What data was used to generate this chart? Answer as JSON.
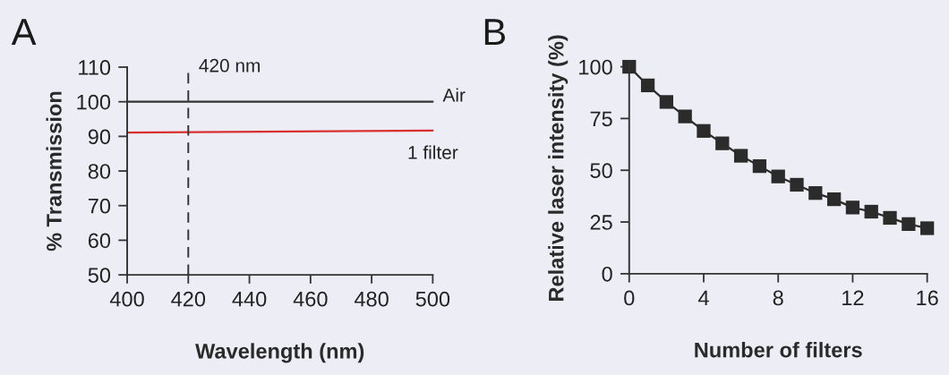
{
  "chart_data": [
    {
      "type": "line",
      "title": "A",
      "xlabel": "Wavelength (nm)",
      "ylabel": "% Transmission",
      "x": [
        400,
        500
      ],
      "series": [
        {
          "name": "Air",
          "color": "#333333",
          "values": [
            100,
            100
          ]
        },
        {
          "name": "1 filter",
          "color": "#d93030",
          "values": [
            91.1,
            91.7
          ]
        }
      ],
      "ref_lines": [
        {
          "axis": "x",
          "value": 420,
          "label": "420 nm",
          "line_style": "dashed",
          "color": "#333333"
        }
      ],
      "xlim": [
        400,
        500
      ],
      "xticks": [
        400,
        420,
        440,
        460,
        480,
        500
      ],
      "ylim": [
        50,
        110
      ],
      "yticks": [
        50,
        60,
        70,
        80,
        90,
        100,
        110
      ],
      "grid": false,
      "marker": "none"
    },
    {
      "type": "line",
      "title": "B",
      "xlabel": "Number of filters",
      "ylabel": "Relative laser intensity (%)",
      "x": [
        0,
        1,
        2,
        3,
        4,
        5,
        6,
        7,
        8,
        9,
        10,
        11,
        12,
        13,
        14,
        15,
        16
      ],
      "series": [
        {
          "color": "#2b2b2b",
          "values": [
            100,
            91,
            83,
            76,
            69,
            63,
            57,
            52,
            47,
            43,
            39,
            36,
            32,
            30,
            27,
            24,
            22
          ]
        }
      ],
      "xlim": [
        0,
        16
      ],
      "xticks": [
        0,
        4,
        8,
        12,
        16
      ],
      "ylim": [
        0,
        102
      ],
      "yticks": [
        0,
        25,
        50,
        75,
        100
      ],
      "grid": false,
      "marker": "square"
    }
  ]
}
